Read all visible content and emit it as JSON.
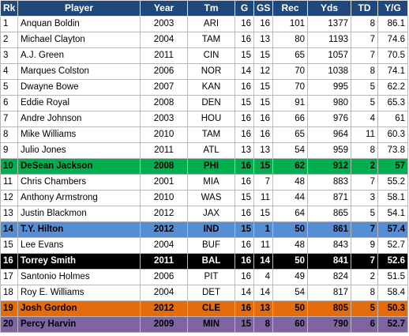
{
  "columns": [
    "Rk",
    "Player",
    "Year",
    "Tm",
    "G",
    "GS",
    "Rec",
    "Yds",
    "TD",
    "Y/G"
  ],
  "rows": [
    [
      "1",
      "Anquan Boldin",
      "2003",
      "ARI",
      "16",
      "16",
      "101",
      "1377",
      "8",
      "86.1"
    ],
    [
      "2",
      "Michael Clayton",
      "2004",
      "TAM",
      "16",
      "13",
      "80",
      "1193",
      "7",
      "74.6"
    ],
    [
      "3",
      "A.J. Green",
      "2011",
      "CIN",
      "15",
      "15",
      "65",
      "1057",
      "7",
      "70.5"
    ],
    [
      "4",
      "Marques Colston",
      "2006",
      "NOR",
      "14",
      "12",
      "70",
      "1038",
      "8",
      "74.1"
    ],
    [
      "5",
      "Dwayne Bowe",
      "2007",
      "KAN",
      "16",
      "15",
      "70",
      "995",
      "5",
      "62.2"
    ],
    [
      "6",
      "Eddie Royal",
      "2008",
      "DEN",
      "15",
      "15",
      "91",
      "980",
      "5",
      "65.3"
    ],
    [
      "7",
      "Andre Johnson",
      "2003",
      "HOU",
      "16",
      "16",
      "66",
      "976",
      "4",
      "61"
    ],
    [
      "8",
      "Mike Williams",
      "2010",
      "TAM",
      "16",
      "16",
      "65",
      "964",
      "11",
      "60.3"
    ],
    [
      "9",
      "Julio Jones",
      "2011",
      "ATL",
      "13",
      "13",
      "54",
      "959",
      "8",
      "73.8"
    ],
    [
      "10",
      "DeSean Jackson",
      "2008",
      "PHI",
      "16",
      "15",
      "62",
      "912",
      "2",
      "57"
    ],
    [
      "11",
      "Chris Chambers",
      "2001",
      "MIA",
      "16",
      "7",
      "48",
      "883",
      "7",
      "55.2"
    ],
    [
      "12",
      "Anthony Armstrong",
      "2010",
      "WAS",
      "15",
      "11",
      "44",
      "871",
      "3",
      "58.1"
    ],
    [
      "13",
      "Justin Blackmon",
      "2012",
      "JAX",
      "16",
      "15",
      "64",
      "865",
      "5",
      "54.1"
    ],
    [
      "14",
      "T.Y. Hilton",
      "2012",
      "IND",
      "15",
      "1",
      "50",
      "861",
      "7",
      "57.4"
    ],
    [
      "15",
      "Lee Evans",
      "2004",
      "BUF",
      "16",
      "11",
      "48",
      "843",
      "9",
      "52.7"
    ],
    [
      "16",
      "Torrey Smith",
      "2011",
      "BAL",
      "16",
      "14",
      "50",
      "841",
      "7",
      "52.6"
    ],
    [
      "17",
      "Santonio Holmes",
      "2006",
      "PIT",
      "16",
      "4",
      "49",
      "824",
      "2",
      "51.5"
    ],
    [
      "18",
      "Roy E. Williams",
      "2004",
      "DET",
      "14",
      "14",
      "54",
      "817",
      "8",
      "58.4"
    ],
    [
      "19",
      "Josh Gordon",
      "2012",
      "CLE",
      "16",
      "13",
      "50",
      "805",
      "5",
      "50.3"
    ],
    [
      "20",
      "Percy Harvin",
      "2009",
      "MIN",
      "15",
      "8",
      "60",
      "790",
      "6",
      "52.7"
    ]
  ],
  "row_colors": {
    "default": "#ffffff",
    "9": {
      "bg": "#00b050",
      "fg": "#000000"
    },
    "13": {
      "bg": "#558ed5",
      "fg": "#000000"
    },
    "15": {
      "bg": "#000000",
      "fg": "#ffffff"
    },
    "18": {
      "bg": "#e46c0a",
      "fg": "#000000"
    },
    "19": {
      "bg": "#8064a2",
      "fg": "#000000"
    }
  }
}
